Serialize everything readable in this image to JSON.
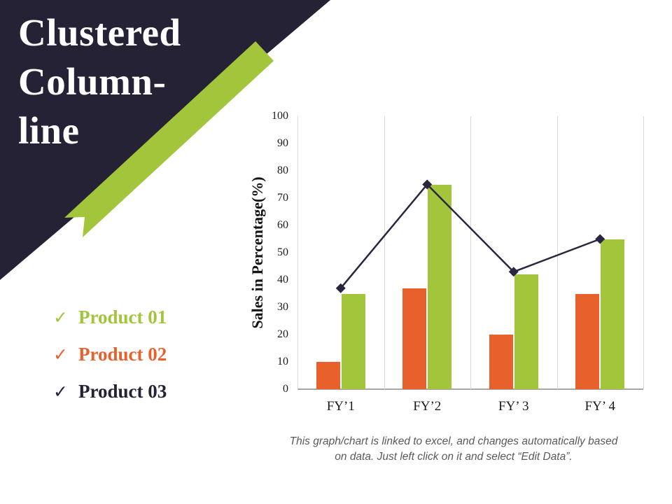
{
  "slide": {
    "title": "Clustered Column-line",
    "title_lines": [
      "Clustered",
      "Column-",
      "line"
    ]
  },
  "legend": {
    "items": [
      {
        "check": "✓",
        "label": "Product 01",
        "color": "#a2c53c"
      },
      {
        "check": "✓",
        "label": "Product 02",
        "color": "#e8612c"
      },
      {
        "check": "✓",
        "label": "Product 03",
        "color": "#252235"
      }
    ]
  },
  "chart_data": {
    "type": "bar+line",
    "categories": [
      "FY’1",
      "FY’2",
      "FY’ 3",
      "FY’ 4"
    ],
    "series": [
      {
        "name": "Product 02",
        "type": "bar",
        "color": "#e8612c",
        "values": [
          10,
          37,
          20,
          35
        ]
      },
      {
        "name": "Product 01",
        "type": "bar",
        "color": "#a2c53c",
        "values": [
          35,
          75,
          42,
          55
        ]
      },
      {
        "name": "Product 03",
        "type": "line",
        "color": "#2a2640",
        "values": [
          37,
          75,
          43,
          55
        ]
      }
    ],
    "title": "",
    "xlabel": "",
    "ylabel": "Sales in Percentage(%)",
    "ylim": [
      0,
      100
    ],
    "yticks": [
      0,
      10,
      20,
      30,
      40,
      50,
      60,
      70,
      80,
      90,
      100
    ],
    "grid": "vertical-only",
    "legend_position": "outside-left"
  },
  "caption": {
    "line1": "This graph/chart is linked to excel, and changes automatically based",
    "line2": "on data. Just left click on it and select “Edit Data”."
  },
  "colors": {
    "corner_triangle": "#252235",
    "ribbon_green": "#a2c53c",
    "bar_orange": "#e8612c",
    "bar_green": "#a2c53c",
    "line_navy": "#2a2640",
    "gridline": "#d9d9d9",
    "axis_line": "#a6a6a6",
    "caption_text": "#595959",
    "title_text": "#ffffff"
  }
}
